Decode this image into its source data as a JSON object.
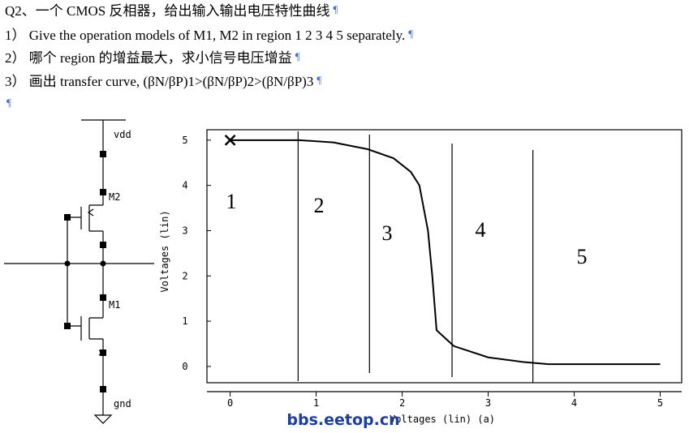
{
  "document": {
    "lines": [
      "Q2、一个 CMOS 反相器，给出输入输出电压特性曲线",
      "1） Give the operation models of M1, M2 in region 1 2 3 4 5 separately.",
      "2） 哪个 region 的增益最大，求小信号电压增益",
      "3） 画出 transfer curve, (βN/βP)1>(βN/βP)2>(βN/βP)3"
    ],
    "pilcrow": "¶"
  },
  "circuit": {
    "vdd": "vdd",
    "m2": "M2",
    "m1": "M1",
    "gnd": "gnd"
  },
  "watermark": "bbs.eetop.cn",
  "chart_data": {
    "type": "line",
    "x_label": "Voltages (lin) (a)",
    "y_label": "Voltages (lin)",
    "x": [
      0,
      0.8,
      1.2,
      1.6,
      1.9,
      2.1,
      2.2,
      2.3,
      2.35,
      2.4,
      2.6,
      3.0,
      3.4,
      3.7,
      5
    ],
    "series": [
      {
        "color": "#000000",
        "values": [
          5,
          5,
          4.95,
          4.8,
          4.6,
          4.3,
          4.0,
          3.0,
          2.0,
          0.8,
          0.45,
          0.2,
          0.1,
          0.05,
          0.05
        ]
      }
    ],
    "xlim": [
      -0.27,
      5.25
    ],
    "ylim": [
      -0.36,
      5.23
    ],
    "xticks": [
      0,
      1,
      2,
      3,
      4,
      5
    ],
    "yticks": [
      0,
      1,
      2,
      3,
      4,
      5
    ],
    "dividers": [
      0.79,
      1.62,
      2.58,
      3.52
    ],
    "regions": [
      "1",
      "2",
      "3",
      "4",
      "5"
    ]
  }
}
